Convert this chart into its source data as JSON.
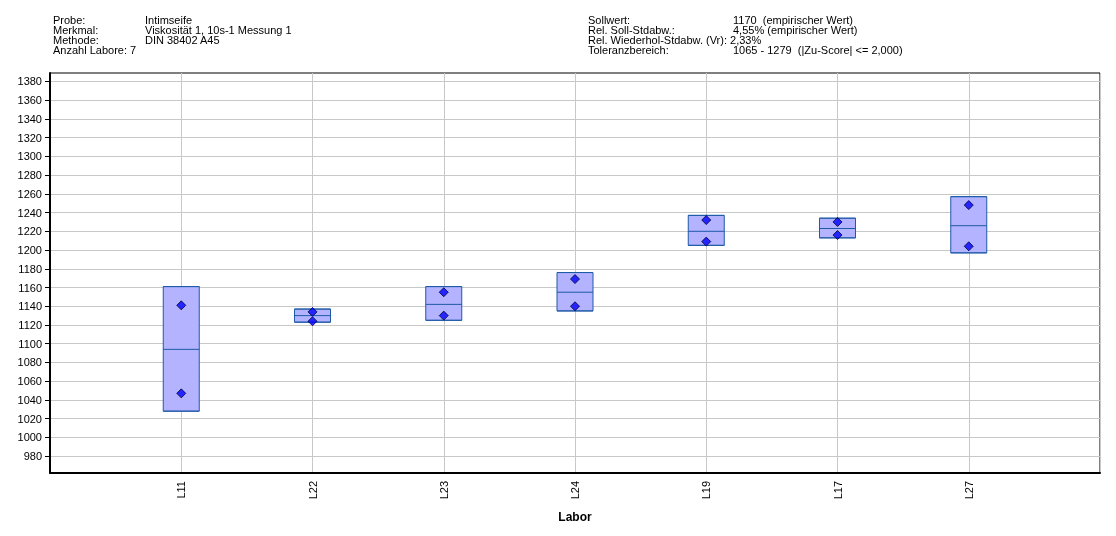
{
  "chart_data": {
    "type": "box",
    "xlabel": "Labor",
    "grid": true,
    "marker": "diamond",
    "annotations": [
      "Probe:",
      "Merkmal:",
      "Methode:",
      "Anzahl Labore: 7",
      "Intimseife",
      "Viskosität 1, 10s-1 Messung 1",
      "DIN 38402 A45",
      "Sollwert:",
      "Rel. Soll-Stdabw.:",
      "Rel. Wiederhol-Stdabw. (Vr): 2,33%",
      "Toleranzbereich:",
      "1170  (empirischer Wert)",
      "4,55% (empirischer Wert)",
      "1065 - 1279  (|Zu-Score| <= 2,000)"
    ],
    "categories": [
      "L11",
      "L22",
      "L23",
      "L24",
      "L19",
      "L17",
      "L27"
    ],
    "ylim": [
      962,
      1389
    ],
    "yticks": [
      980,
      1000,
      1020,
      1040,
      1060,
      1080,
      1100,
      1120,
      1140,
      1160,
      1180,
      1200,
      1220,
      1240,
      1260,
      1280,
      1300,
      1320,
      1340,
      1360,
      1380
    ],
    "series": [
      {
        "color": "#b3b3ff",
        "boxes": [
          {
            "low": 1028,
            "q1": 1028,
            "median": 1094,
            "q3": 1161,
            "high": 1161
          },
          {
            "low": 1123,
            "q1": 1123,
            "median": 1130,
            "q3": 1137,
            "high": 1137
          },
          {
            "low": 1125,
            "q1": 1125,
            "median": 1142,
            "q3": 1161,
            "high": 1161
          },
          {
            "low": 1135,
            "q1": 1135,
            "median": 1155,
            "q3": 1176,
            "high": 1176
          },
          {
            "low": 1205,
            "q1": 1205,
            "median": 1220,
            "q3": 1237,
            "high": 1237
          },
          {
            "low": 1213,
            "q1": 1213,
            "median": 1223,
            "q3": 1234,
            "high": 1234
          },
          {
            "low": 1197,
            "q1": 1197,
            "median": 1226,
            "q3": 1257,
            "high": 1257
          }
        ]
      },
      {
        "type": "scatter",
        "color": "#0000ff",
        "x": [
          "L11",
          "L11",
          "L22",
          "L22",
          "L23",
          "L23",
          "L24",
          "L24",
          "L19",
          "L19",
          "L17",
          "L17",
          "L27",
          "L27"
        ],
        "values": [
          1141,
          1047,
          1134,
          1124,
          1155,
          1130,
          1169,
          1140,
          1232,
          1209,
          1230,
          1216,
          1248,
          1204
        ]
      }
    ]
  }
}
